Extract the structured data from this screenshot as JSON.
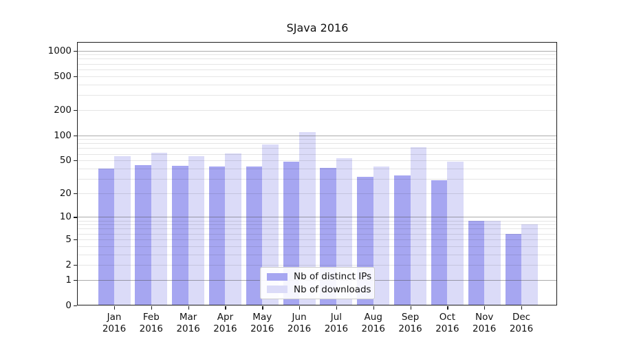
{
  "chart_data": {
    "type": "bar",
    "title": "SJava 2016",
    "x_year": "2016",
    "categories": [
      "Jan",
      "Feb",
      "Mar",
      "Apr",
      "May",
      "Jun",
      "Jul",
      "Aug",
      "Sep",
      "Oct",
      "Nov",
      "Dec"
    ],
    "series": [
      {
        "name": "Nb of distinct IPs",
        "color": "#a6a6f1",
        "values": [
          40,
          44,
          43,
          42,
          42,
          48,
          41,
          32,
          33,
          29,
          9,
          6
        ]
      },
      {
        "name": "Nb of downloads",
        "color": "#dbdbf8",
        "values": [
          56,
          62,
          56,
          61,
          77,
          108,
          53,
          42,
          72,
          48,
          9,
          8
        ]
      }
    ],
    "y_axis": {
      "scale": "log1p",
      "ticks": [
        0,
        1,
        2,
        5,
        10,
        20,
        50,
        100,
        200,
        500,
        1000
      ],
      "ylim": [
        0,
        1240
      ],
      "major_gridlines": [
        1,
        10,
        100,
        1000
      ],
      "minor_gridlines": [
        2,
        3,
        4,
        5,
        6,
        7,
        8,
        9,
        20,
        30,
        40,
        50,
        60,
        70,
        80,
        90,
        200,
        300,
        400,
        500,
        600,
        700,
        800,
        900
      ]
    },
    "legend": {
      "position": "bottom-center-inside"
    },
    "grid": true
  }
}
